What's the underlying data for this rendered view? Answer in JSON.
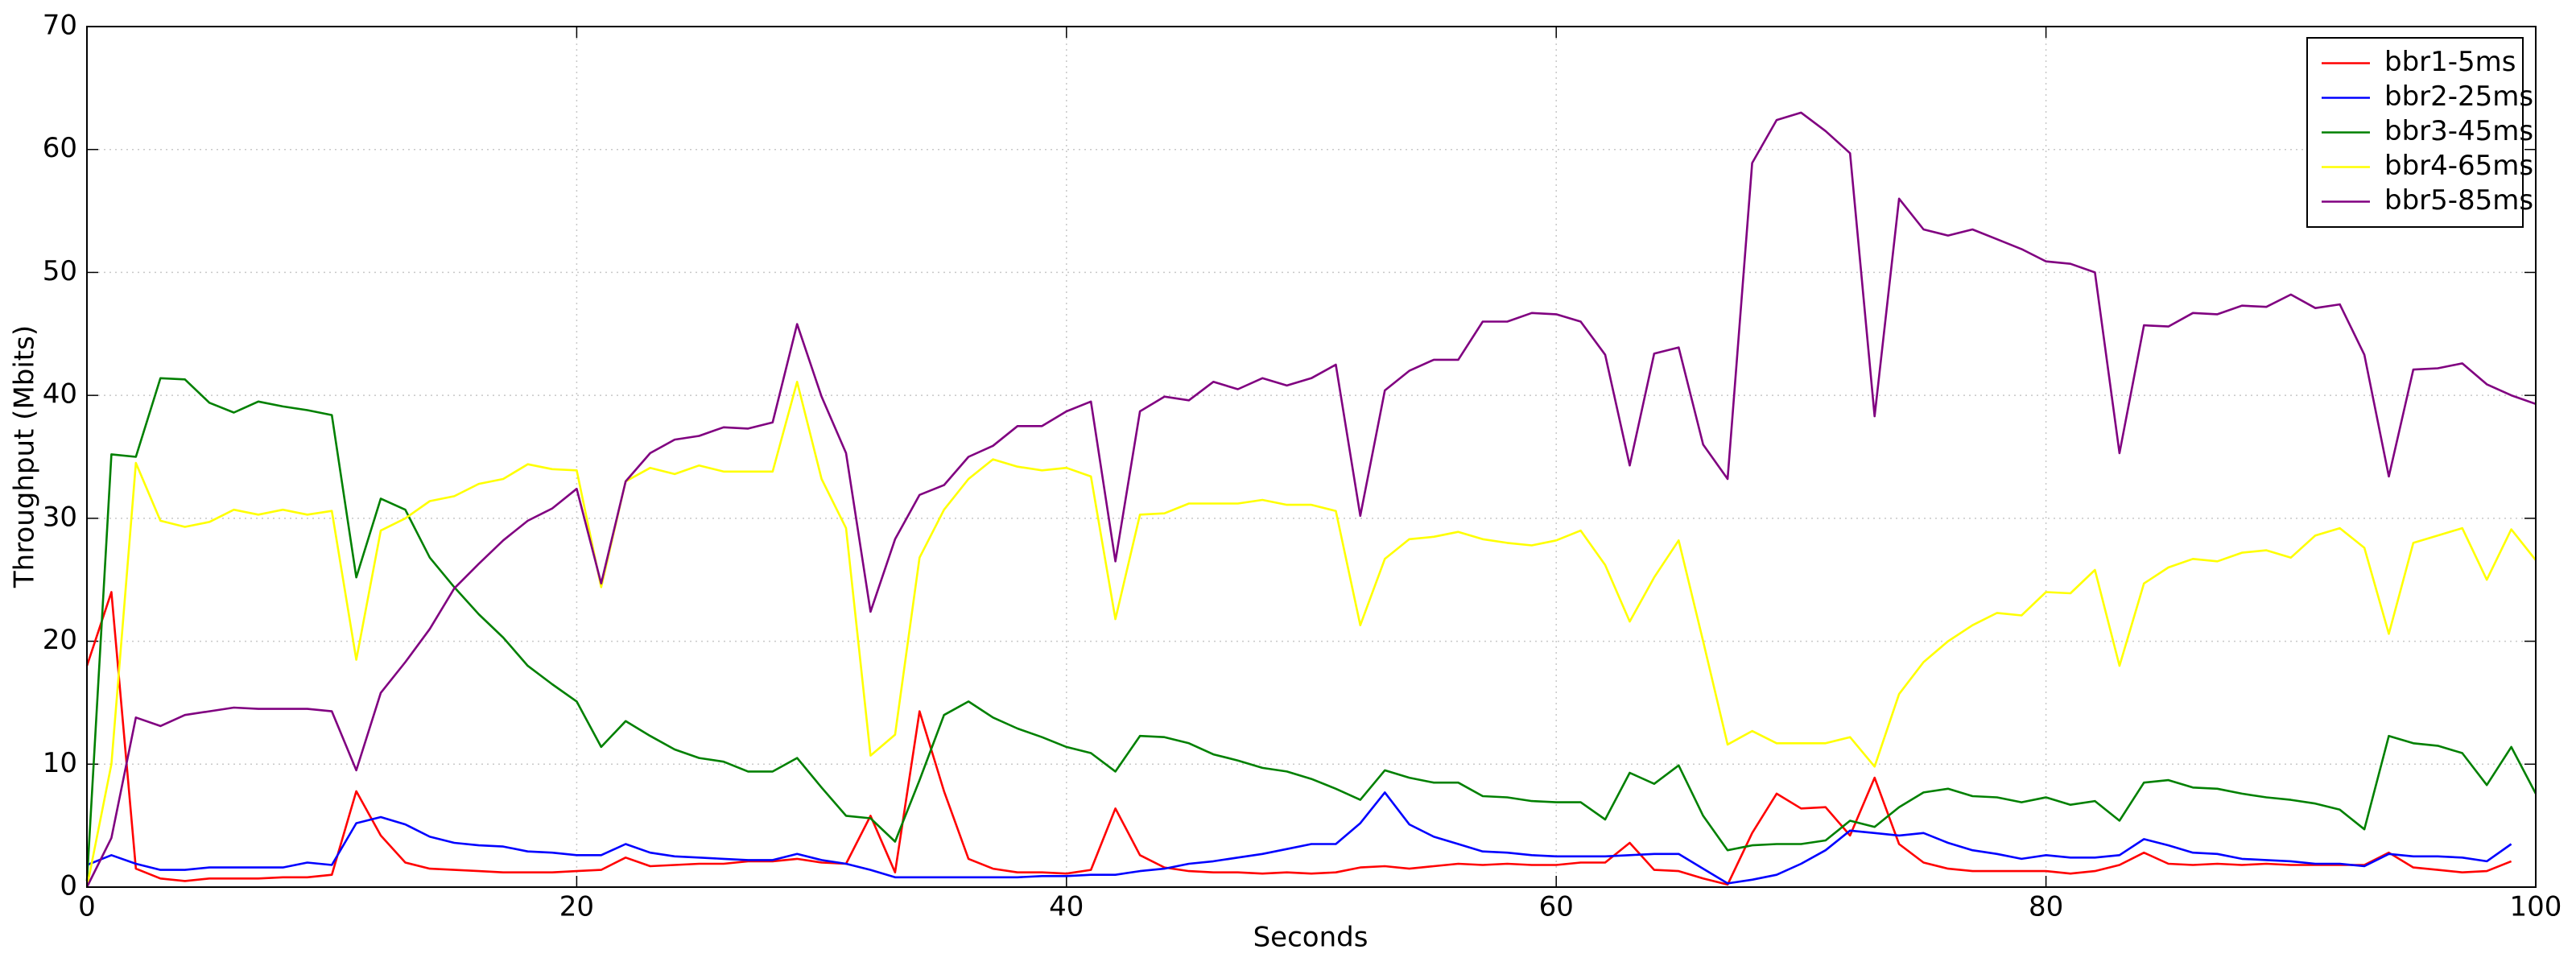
{
  "chart_data": {
    "type": "line",
    "xlabel": "Seconds",
    "ylabel": "Throughput (Mbits)",
    "x": [
      0,
      1,
      2,
      3,
      4,
      5,
      6,
      7,
      8,
      9,
      10,
      11,
      12,
      13,
      14,
      15,
      16,
      17,
      18,
      19,
      20,
      21,
      22,
      23,
      24,
      25,
      26,
      27,
      28,
      29,
      30,
      31,
      32,
      33,
      34,
      35,
      36,
      37,
      38,
      39,
      40,
      41,
      42,
      43,
      44,
      45,
      46,
      47,
      48,
      49,
      50,
      51,
      52,
      53,
      54,
      55,
      56,
      57,
      58,
      59,
      60,
      61,
      62,
      63,
      64,
      65,
      66,
      67,
      68,
      69,
      70,
      71,
      72,
      73,
      74,
      75,
      76,
      77,
      78,
      79,
      80,
      81,
      82,
      83,
      84,
      85,
      86,
      87,
      88,
      89,
      90,
      91,
      92,
      93,
      94,
      95,
      96,
      97,
      98,
      99,
      100
    ],
    "series": [
      {
        "name": "bbr1-5ms",
        "color": "#ff0000",
        "values": [
          18,
          24,
          1.5,
          0.7,
          0.5,
          0.7,
          0.7,
          0.7,
          0.8,
          0.8,
          1,
          7.8,
          4.2,
          2,
          1.5,
          1.4,
          1.3,
          1.2,
          1.2,
          1.2,
          1.3,
          1.4,
          2.4,
          1.7,
          1.8,
          1.9,
          1.9,
          2.1,
          2.1,
          2.3,
          2,
          1.9,
          5.8,
          1.2,
          14.3,
          7.8,
          2.3,
          1.5,
          1.2,
          1.2,
          1.1,
          1.4,
          6.4,
          2.6,
          1.6,
          1.3,
          1.2,
          1.2,
          1.1,
          1.2,
          1.1,
          1.2,
          1.6,
          1.7,
          1.5,
          1.7,
          1.9,
          1.8,
          1.9,
          1.8,
          1.8,
          2,
          2,
          3.6,
          1.4,
          1.3,
          0.7,
          0.2,
          4.4,
          7.6,
          6.4,
          6.5,
          4.2,
          8.9,
          3.5,
          2,
          1.5,
          1.3,
          1.3,
          1.3,
          1.3,
          1.1,
          1.3,
          1.8,
          2.8,
          1.9,
          1.8,
          1.9,
          1.8,
          1.9,
          1.8,
          1.8,
          1.8,
          1.8,
          2.8,
          1.6,
          1.4,
          1.2,
          1.3,
          2.1,
          null
        ]
      },
      {
        "name": "bbr2-25ms",
        "color": "#0000ff",
        "values": [
          1.8,
          2.6,
          1.9,
          1.4,
          1.4,
          1.6,
          1.6,
          1.6,
          1.6,
          2,
          1.8,
          5.2,
          5.7,
          5.1,
          4.1,
          3.6,
          3.4,
          3.3,
          2.9,
          2.8,
          2.6,
          2.6,
          3.5,
          2.8,
          2.5,
          2.4,
          2.3,
          2.2,
          2.2,
          2.7,
          2.2,
          1.9,
          1.4,
          0.8,
          0.8,
          0.8,
          0.8,
          0.8,
          0.8,
          0.9,
          0.9,
          1,
          1,
          1.3,
          1.5,
          1.9,
          2.1,
          2.4,
          2.7,
          3.1,
          3.5,
          3.5,
          5.2,
          7.7,
          5.1,
          4.1,
          3.5,
          2.9,
          2.8,
          2.6,
          2.5,
          2.5,
          2.5,
          2.6,
          2.7,
          2.7,
          1.5,
          0.3,
          0.6,
          1,
          1.9,
          3,
          4.6,
          4.4,
          4.2,
          4.4,
          3.6,
          3,
          2.7,
          2.3,
          2.6,
          2.4,
          2.4,
          2.6,
          3.9,
          3.4,
          2.8,
          2.7,
          2.3,
          2.2,
          2.1,
          1.9,
          1.9,
          1.7,
          2.7,
          2.5,
          2.5,
          2.4,
          2.1,
          3.5,
          null
        ]
      },
      {
        "name": "bbr3-45ms",
        "color": "#008000",
        "values": [
          0.5,
          35.2,
          35,
          41.4,
          41.3,
          39.4,
          38.6,
          39.5,
          39.1,
          38.8,
          38.4,
          25.2,
          31.6,
          30.7,
          26.8,
          24.4,
          22.2,
          20.3,
          18,
          16.5,
          15.1,
          11.4,
          13.5,
          12.3,
          11.2,
          10.5,
          10.2,
          9.4,
          9.4,
          10.5,
          8.1,
          5.8,
          5.6,
          3.7,
          8.7,
          14,
          15.1,
          13.8,
          12.9,
          12.2,
          11.4,
          10.9,
          9.4,
          12.3,
          12.2,
          11.7,
          10.8,
          10.3,
          9.7,
          9.4,
          8.8,
          8,
          7.1,
          9.5,
          8.9,
          8.5,
          8.5,
          7.4,
          7.3,
          7,
          6.9,
          6.9,
          5.5,
          9.3,
          8.4,
          9.9,
          5.8,
          3,
          3.4,
          3.5,
          3.5,
          3.8,
          5.4,
          4.9,
          6.5,
          7.7,
          8,
          7.4,
          7.3,
          6.9,
          7.3,
          6.7,
          7,
          5.4,
          8.5,
          8.7,
          8.1,
          8,
          7.6,
          7.3,
          7.1,
          6.8,
          6.3,
          4.7,
          12.3,
          11.7,
          11.5,
          10.9,
          8.3,
          11.4,
          7.6
        ]
      },
      {
        "name": "bbr4-65ms",
        "color": "#ffff00",
        "values": [
          0,
          10,
          34.5,
          29.8,
          29.3,
          29.7,
          30.7,
          30.3,
          30.7,
          30.3,
          30.6,
          18.5,
          29,
          30,
          31.4,
          31.8,
          32.8,
          33.2,
          34.4,
          34,
          33.9,
          24.4,
          33,
          34.1,
          33.6,
          34.3,
          33.8,
          33.8,
          33.8,
          41.1,
          33.2,
          29.2,
          10.7,
          12.4,
          26.8,
          30.7,
          33.2,
          34.8,
          34.2,
          33.9,
          34.1,
          33.4,
          21.8,
          30.3,
          30.4,
          31.2,
          31.2,
          31.2,
          31.5,
          31.1,
          31.1,
          30.6,
          21.3,
          26.7,
          28.3,
          28.5,
          28.9,
          28.3,
          28,
          27.8,
          28.2,
          29,
          26.2,
          21.6,
          25.2,
          28.2,
          20,
          11.6,
          12.7,
          11.7,
          11.7,
          11.7,
          12.2,
          9.8,
          15.7,
          18.3,
          20,
          21.3,
          22.3,
          22.1,
          24,
          23.9,
          25.8,
          18,
          24.7,
          26,
          26.7,
          26.5,
          27.2,
          27.4,
          26.8,
          28.6,
          29.2,
          27.6,
          20.6,
          28,
          28.6,
          29.2,
          25,
          29.1,
          26.6
        ]
      },
      {
        "name": "bbr5-85ms",
        "color": "#800080",
        "values": [
          0,
          4,
          13.8,
          13.1,
          14,
          14.3,
          14.6,
          14.5,
          14.5,
          14.5,
          14.3,
          9.5,
          15.8,
          18.3,
          21,
          24.3,
          26.3,
          28.2,
          29.8,
          30.8,
          32.4,
          24.7,
          33,
          35.3,
          36.4,
          36.7,
          37.4,
          37.3,
          37.8,
          45.8,
          39.9,
          35.3,
          22.4,
          28.3,
          31.9,
          32.7,
          35,
          35.9,
          37.5,
          37.5,
          38.7,
          39.5,
          26.5,
          38.7,
          39.9,
          39.6,
          41.1,
          40.5,
          41.4,
          40.8,
          41.4,
          42.5,
          30.2,
          40.4,
          42,
          42.9,
          42.9,
          46,
          46,
          46.7,
          46.6,
          46,
          43.3,
          34.3,
          43.4,
          43.9,
          36,
          33.2,
          58.9,
          62.4,
          63,
          61.5,
          59.7,
          38.3,
          56,
          53.5,
          53,
          53.5,
          52.7,
          51.9,
          50.9,
          50.7,
          50,
          35.3,
          45.7,
          45.6,
          46.7,
          46.6,
          47.3,
          47.2,
          48.2,
          47.1,
          47.4,
          43.3,
          33.4,
          42.1,
          42.2,
          42.6,
          40.9,
          40,
          39.3
        ]
      }
    ],
    "xlim": [
      0,
      100
    ],
    "xticks": [
      0,
      20,
      40,
      60,
      80,
      100
    ],
    "ylim": [
      0,
      70
    ],
    "yticks": [
      0,
      10,
      20,
      30,
      40,
      50,
      60,
      70
    ],
    "grid": true,
    "legend": "upper right"
  }
}
